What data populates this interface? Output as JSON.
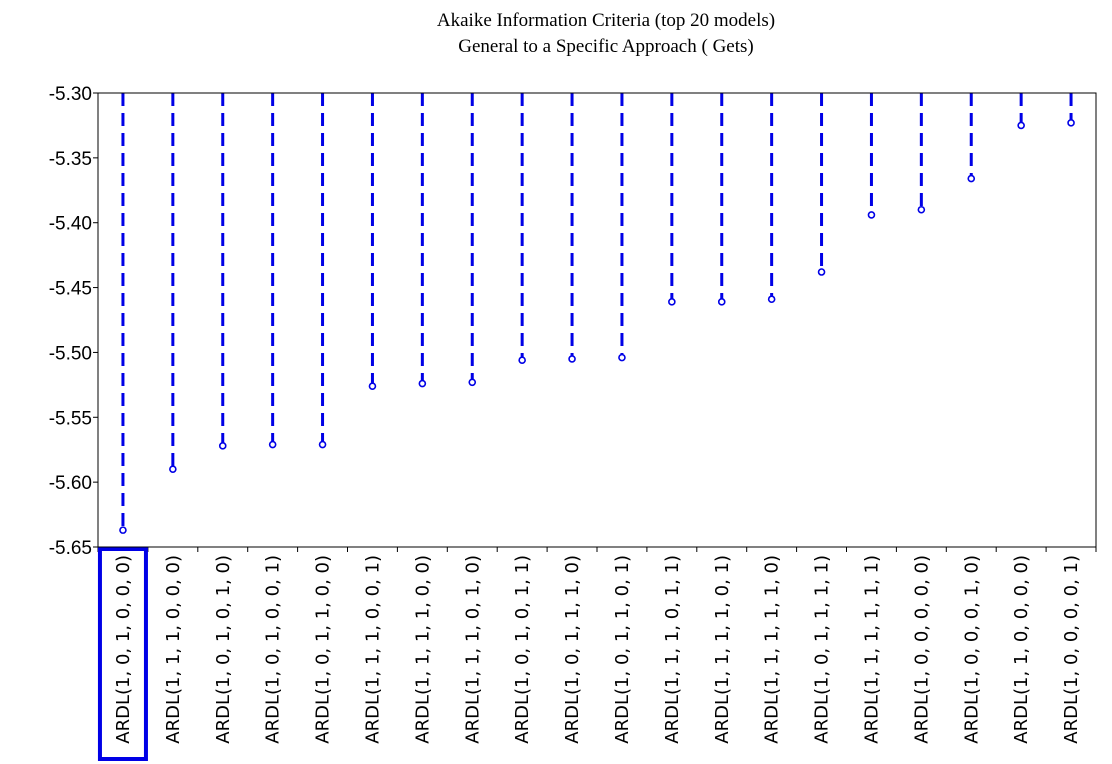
{
  "chart_data": {
    "type": "lollipop",
    "title": "Akaike Information Criteria (top 20 models)",
    "subtitle": "General to a Specific Approach ( Gets)",
    "xlabel": "",
    "ylabel": "",
    "ylim": [
      -5.65,
      -5.3
    ],
    "yticks": [
      "-5.30",
      "-5.35",
      "-5.40",
      "-5.45",
      "-5.50",
      "-5.55",
      "-5.60",
      "-5.65"
    ],
    "yticks_values": [
      -5.3,
      -5.35,
      -5.4,
      -5.45,
      -5.5,
      -5.55,
      -5.6,
      -5.65
    ],
    "grid": false,
    "legend": "none",
    "line_style": "dashed",
    "color": "#0000e6",
    "highlight_color": "#0000e6",
    "highlighted_category": "ARDL(1, 0, 1, 0, 0, 0)",
    "categories": [
      "ARDL(1, 0, 1, 0, 0, 0)",
      "ARDL(1, 1, 1, 0, 0, 0)",
      "ARDL(1, 0, 1, 0, 1, 0)",
      "ARDL(1, 0, 1, 0, 0, 1)",
      "ARDL(1, 0, 1, 1, 0, 0)",
      "ARDL(1, 1, 1, 0, 0, 1)",
      "ARDL(1, 1, 1, 1, 0, 0)",
      "ARDL(1, 1, 1, 0, 1, 0)",
      "ARDL(1, 0, 1, 0, 1, 1)",
      "ARDL(1, 0, 1, 1, 1, 0)",
      "ARDL(1, 0, 1, 1, 0, 1)",
      "ARDL(1, 1, 1, 0, 1, 1)",
      "ARDL(1, 1, 1, 1, 0, 1)",
      "ARDL(1, 1, 1, 1, 1, 0)",
      "ARDL(1, 0, 1, 1, 1, 1)",
      "ARDL(1, 1, 1, 1, 1, 1)",
      "ARDL(1, 0, 0, 0, 0, 0)",
      "ARDL(1, 0, 0, 0, 1, 0)",
      "ARDL(1, 1, 0, 0, 0, 0)",
      "ARDL(1, 0, 0, 0, 0, 1)"
    ],
    "values": [
      -5.637,
      -5.59,
      -5.572,
      -5.571,
      -5.571,
      -5.526,
      -5.524,
      -5.523,
      -5.506,
      -5.505,
      -5.504,
      -5.461,
      -5.461,
      -5.459,
      -5.438,
      -5.394,
      -5.39,
      -5.366,
      -5.325,
      -5.323
    ]
  }
}
